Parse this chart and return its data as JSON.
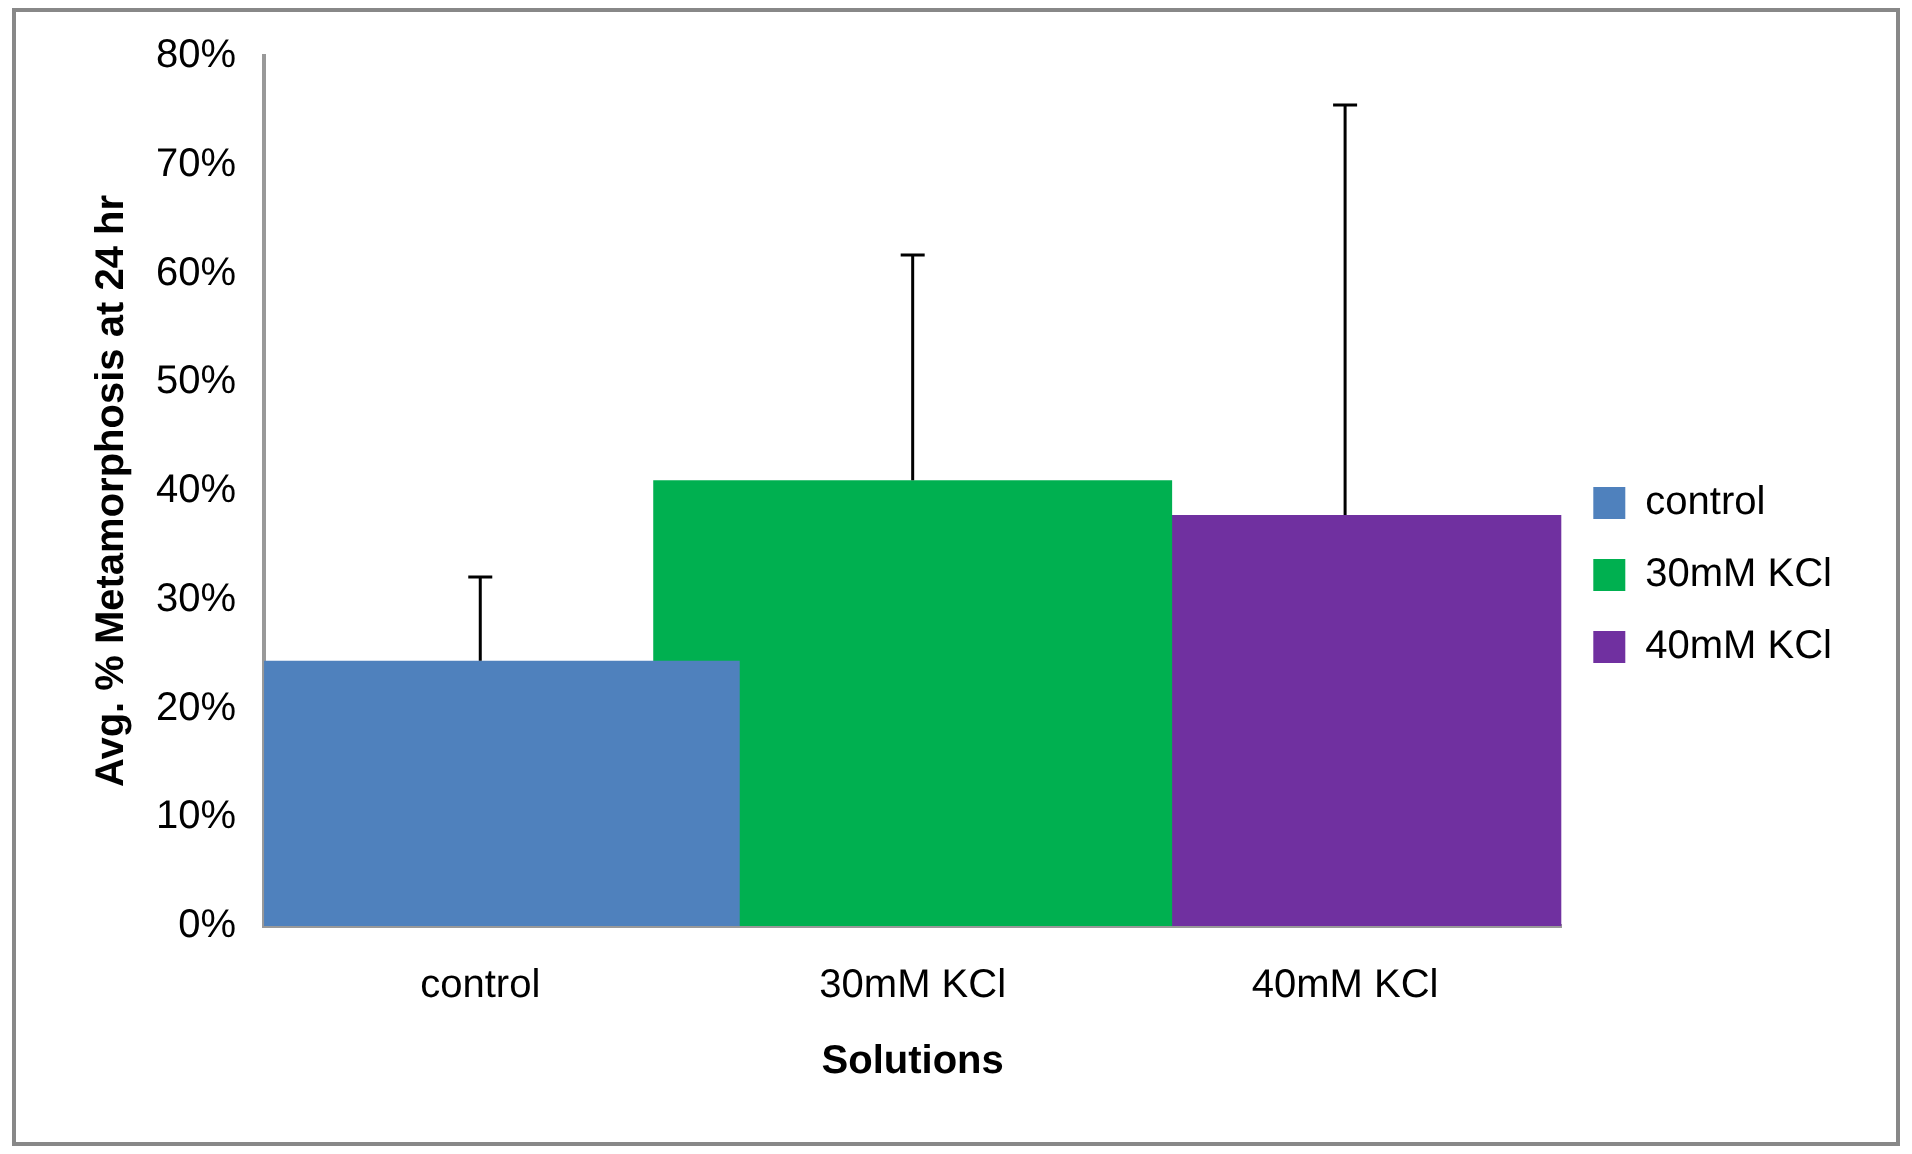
{
  "chart_data": {
    "type": "bar",
    "xlabel": "Solutions",
    "ylabel": "Avg. % Metamorphosis at 24 hr",
    "categories": [
      "control",
      "30mM KCl",
      "40mM KCl"
    ],
    "series": [
      {
        "name": "control",
        "color": "#4f81bd",
        "values": [
          24.4,
          null,
          null
        ],
        "errors": [
          [
            24.4,
            32.1
          ],
          null,
          null
        ]
      },
      {
        "name": "30mM KCl",
        "color": "#00b050",
        "values": [
          null,
          41.0,
          null
        ],
        "errors": [
          null,
          [
            41.0,
            61.7
          ],
          null
        ]
      },
      {
        "name": "40mM KCl",
        "color": "#7030a0",
        "values": [
          null,
          null,
          37.8
        ],
        "errors": [
          null,
          null,
          [
            37.8,
            75.5
          ]
        ]
      }
    ],
    "ylim": [
      0,
      80
    ],
    "yticks": [
      {
        "value": 0,
        "label": "0%"
      },
      {
        "value": 10,
        "label": "10%"
      },
      {
        "value": 20,
        "label": "20%"
      },
      {
        "value": 30,
        "label": "30%"
      },
      {
        "value": 40,
        "label": "40%"
      },
      {
        "value": 50,
        "label": "50%"
      },
      {
        "value": 60,
        "label": "60%"
      },
      {
        "value": 70,
        "label": "70%"
      },
      {
        "value": 80,
        "label": "80%"
      }
    ],
    "grid": false,
    "legend": "right"
  }
}
